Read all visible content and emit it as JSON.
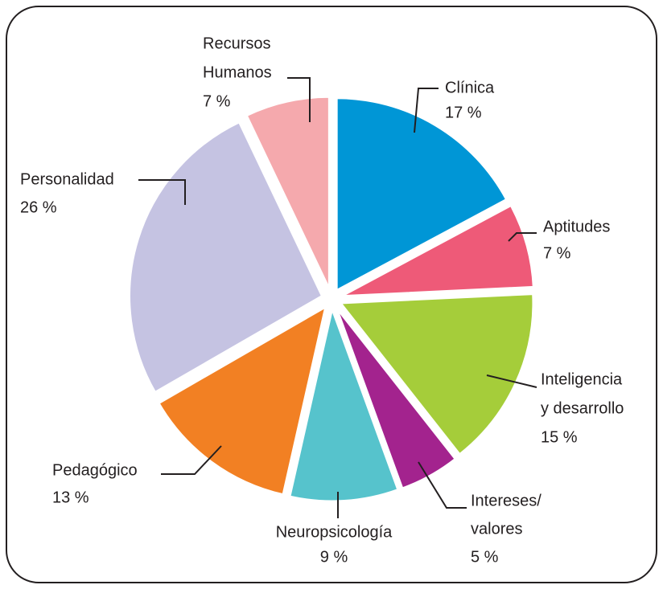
{
  "chart_data": {
    "type": "pie",
    "categories": [
      [
        "Clínica"
      ],
      [
        "Aptitudes"
      ],
      [
        "Inteligencia",
        "y desarrollo"
      ],
      [
        "Intereses/",
        "valores"
      ],
      [
        "Neuropsicología"
      ],
      [
        "Pedagógico"
      ],
      [
        "Personalidad"
      ],
      [
        "Recursos",
        "Humanos"
      ]
    ],
    "values": [
      17,
      7,
      15,
      5,
      9,
      13,
      26,
      7
    ],
    "value_labels": [
      "17 %",
      "7 %",
      "15 %",
      "5 %",
      "9 %",
      "13 %",
      "26 %",
      "7 %"
    ],
    "colors": [
      "#0096d6",
      "#ee5a78",
      "#a5cd3a",
      "#a3238e",
      "#56c3cc",
      "#f28023",
      "#c5c3e2",
      "#f5a9ad"
    ]
  }
}
